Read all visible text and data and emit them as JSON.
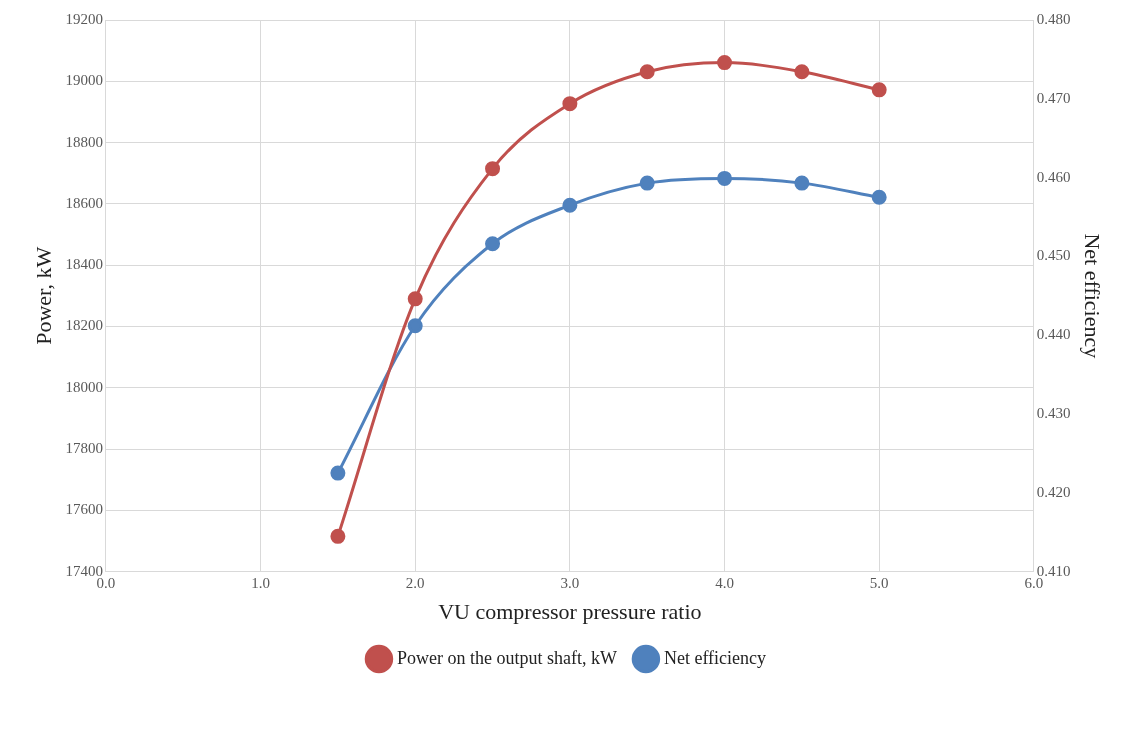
{
  "chart_data": {
    "type": "line",
    "xlabel": "VU compressor pressure ratio",
    "ylabel": "Power, kW",
    "y2label": "Net efficiency",
    "x": [
      1.5,
      2.0,
      2.5,
      3.0,
      3.5,
      4.0,
      4.5,
      5.0
    ],
    "series": [
      {
        "name": "Power on the output shaft, kW",
        "color": "#c0504d",
        "values": [
          17515,
          18290,
          18715,
          18927,
          19031,
          19061,
          19031,
          18972
        ]
      },
      {
        "name": "Net efficiency",
        "color": "#4f81bd",
        "axis": "y2",
        "values": [
          0.4225,
          0.4412,
          0.4516,
          0.4565,
          0.4593,
          0.4599,
          0.4593,
          0.4575
        ]
      }
    ],
    "xlim": [
      0,
      6
    ],
    "xticks": [
      {
        "value": 0,
        "label": "0.0"
      },
      {
        "value": 1,
        "label": "1.0"
      },
      {
        "value": 2,
        "label": "2.0"
      },
      {
        "value": 3,
        "label": "3.0"
      },
      {
        "value": 4,
        "label": "4.0"
      },
      {
        "value": 5,
        "label": "5.0"
      },
      {
        "value": 6,
        "label": "6.0"
      }
    ],
    "ylim": [
      17400,
      19200
    ],
    "yticks": [
      17400,
      17600,
      17800,
      18000,
      18200,
      18400,
      18600,
      18800,
      19000,
      19200
    ],
    "y2lim": [
      0.41,
      0.48
    ],
    "y2ticks": [
      {
        "value": 0.41,
        "label": "0.410"
      },
      {
        "value": 0.42,
        "label": "0.420"
      },
      {
        "value": 0.43,
        "label": "0.430"
      },
      {
        "value": 0.44,
        "label": "0.440"
      },
      {
        "value": 0.45,
        "label": "0.450"
      },
      {
        "value": 0.46,
        "label": "0.460"
      },
      {
        "value": 0.47,
        "label": "0.470"
      },
      {
        "value": 0.48,
        "label": "0.480"
      }
    ],
    "grid": true,
    "legend": "bottom",
    "marker": "circle",
    "line_style": "solid"
  }
}
